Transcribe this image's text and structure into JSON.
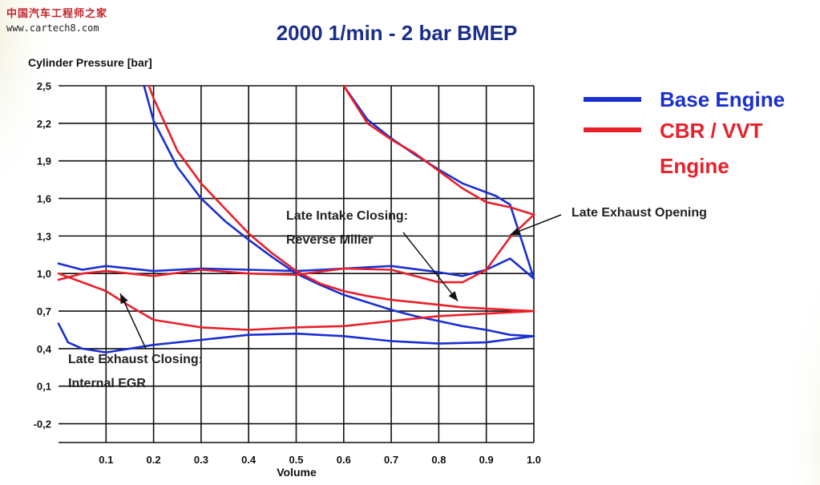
{
  "watermark": {
    "site_name": "中国汽车工程师之家",
    "url": "www.cartech8.com"
  },
  "colors": {
    "base": "#1a2fd0",
    "cbr": "#e8202a",
    "title": "#1a2e8a",
    "grid": "#111111"
  },
  "chart_data": {
    "type": "line",
    "title": "2000 1/min - 2 bar BMEP",
    "xlabel": "Volume",
    "ylabel": "Cylinder Pressure [bar]",
    "xlim": [
      0.0,
      1.0
    ],
    "ylim": [
      -0.35,
      2.5
    ],
    "x_ticks": [
      0.1,
      0.2,
      0.3,
      0.4,
      0.5,
      0.6,
      0.7,
      0.8,
      0.9,
      1.0
    ],
    "x_tick_labels": [
      "0.1",
      "0.2",
      "0.3",
      "0.4",
      "0.5",
      "0.6",
      "0.7",
      "0.8",
      "0.9",
      "1.0"
    ],
    "y_ticks": [
      2.5,
      2.2,
      1.9,
      1.6,
      1.3,
      1.0,
      0.7,
      0.4,
      0.1,
      -0.2
    ],
    "y_tick_labels": [
      "2,5",
      "2,2",
      "1,9",
      "1,6",
      "1,3",
      "1,0",
      "0,7",
      "0,4",
      "0,1",
      "-0,2"
    ],
    "grid": true,
    "legend_placement": "right",
    "series": [
      {
        "name": "Base Engine",
        "color": "#1a2fd0",
        "segments": [
          [
            [
              0.18,
              2.5
            ],
            [
              0.2,
              2.22
            ],
            [
              0.25,
              1.85
            ],
            [
              0.3,
              1.6
            ],
            [
              0.35,
              1.42
            ],
            [
              0.4,
              1.27
            ],
            [
              0.45,
              1.13
            ],
            [
              0.5,
              1.0
            ],
            [
              0.55,
              0.91
            ],
            [
              0.6,
              0.83
            ],
            [
              0.65,
              0.77
            ],
            [
              0.7,
              0.71
            ],
            [
              0.75,
              0.66
            ],
            [
              0.8,
              0.62
            ],
            [
              0.85,
              0.58
            ],
            [
              0.9,
              0.55
            ],
            [
              0.95,
              0.51
            ],
            [
              1.0,
              0.5
            ]
          ],
          [
            [
              1.0,
              0.5
            ],
            [
              0.9,
              0.45
            ],
            [
              0.8,
              0.44
            ],
            [
              0.7,
              0.46
            ],
            [
              0.6,
              0.5
            ],
            [
              0.5,
              0.52
            ],
            [
              0.4,
              0.51
            ],
            [
              0.3,
              0.47
            ],
            [
              0.2,
              0.43
            ],
            [
              0.1,
              0.37
            ],
            [
              0.05,
              0.4
            ],
            [
              0.02,
              0.45
            ],
            [
              0.0,
              0.6
            ]
          ],
          [
            [
              0.0,
              1.08
            ],
            [
              0.05,
              1.03
            ],
            [
              0.1,
              1.06
            ],
            [
              0.2,
              1.02
            ],
            [
              0.3,
              1.04
            ],
            [
              0.4,
              1.03
            ],
            [
              0.5,
              1.02
            ],
            [
              0.6,
              1.04
            ],
            [
              0.7,
              1.06
            ],
            [
              0.8,
              1.01
            ],
            [
              0.85,
              0.98
            ],
            [
              0.9,
              1.03
            ],
            [
              0.95,
              1.12
            ],
            [
              1.0,
              0.96
            ]
          ],
          [
            [
              1.0,
              0.96
            ],
            [
              0.98,
              1.2
            ],
            [
              0.95,
              1.55
            ],
            [
              0.92,
              1.62
            ],
            [
              0.85,
              1.72
            ],
            [
              0.8,
              1.83
            ],
            [
              0.75,
              1.95
            ],
            [
              0.7,
              2.08
            ],
            [
              0.65,
              2.23
            ],
            [
              0.6,
              2.5
            ]
          ]
        ]
      },
      {
        "name": "CBR / VVT Engine",
        "color": "#e8202a",
        "segments": [
          [
            [
              0.19,
              2.5
            ],
            [
              0.2,
              2.4
            ],
            [
              0.25,
              1.98
            ],
            [
              0.3,
              1.72
            ],
            [
              0.35,
              1.52
            ],
            [
              0.4,
              1.32
            ],
            [
              0.45,
              1.16
            ],
            [
              0.5,
              1.02
            ],
            [
              0.55,
              0.92
            ],
            [
              0.6,
              0.86
            ],
            [
              0.65,
              0.82
            ],
            [
              0.7,
              0.79
            ],
            [
              0.75,
              0.77
            ],
            [
              0.8,
              0.75
            ],
            [
              0.85,
              0.73
            ],
            [
              0.9,
              0.72
            ],
            [
              0.95,
              0.71
            ],
            [
              1.0,
              0.7
            ]
          ],
          [
            [
              1.0,
              0.7
            ],
            [
              0.9,
              0.68
            ],
            [
              0.8,
              0.66
            ],
            [
              0.7,
              0.62
            ],
            [
              0.6,
              0.58
            ],
            [
              0.5,
              0.57
            ],
            [
              0.4,
              0.55
            ],
            [
              0.3,
              0.57
            ],
            [
              0.2,
              0.63
            ],
            [
              0.15,
              0.74
            ],
            [
              0.1,
              0.86
            ],
            [
              0.05,
              0.93
            ],
            [
              0.0,
              1.0
            ]
          ],
          [
            [
              0.0,
              0.95
            ],
            [
              0.05,
              1.0
            ],
            [
              0.1,
              1.02
            ],
            [
              0.15,
              1.0
            ],
            [
              0.2,
              0.98
            ],
            [
              0.3,
              1.03
            ],
            [
              0.4,
              1.0
            ],
            [
              0.5,
              0.99
            ],
            [
              0.6,
              1.04
            ],
            [
              0.7,
              1.03
            ],
            [
              0.75,
              0.98
            ],
            [
              0.8,
              0.93
            ],
            [
              0.85,
              0.93
            ],
            [
              0.9,
              1.03
            ],
            [
              0.95,
              1.29
            ],
            [
              1.0,
              1.47
            ]
          ],
          [
            [
              1.0,
              1.47
            ],
            [
              0.95,
              1.53
            ],
            [
              0.9,
              1.57
            ],
            [
              0.85,
              1.68
            ],
            [
              0.8,
              1.82
            ],
            [
              0.75,
              1.96
            ],
            [
              0.7,
              2.07
            ],
            [
              0.65,
              2.2
            ],
            [
              0.6,
              2.5
            ]
          ]
        ]
      }
    ],
    "annotations": [
      {
        "lines": [
          "Late Intake Closing:",
          "Reverse Miller"
        ],
        "arrow_to": [
          0.84,
          0.78
        ]
      },
      {
        "lines": [
          "Late Exhaust Opening"
        ],
        "arrow_to": [
          0.95,
          1.31
        ]
      },
      {
        "lines": [
          "Late Exhaust Closing:",
          "Internal EGR"
        ],
        "arrow_to": [
          0.13,
          0.84
        ]
      }
    ]
  }
}
